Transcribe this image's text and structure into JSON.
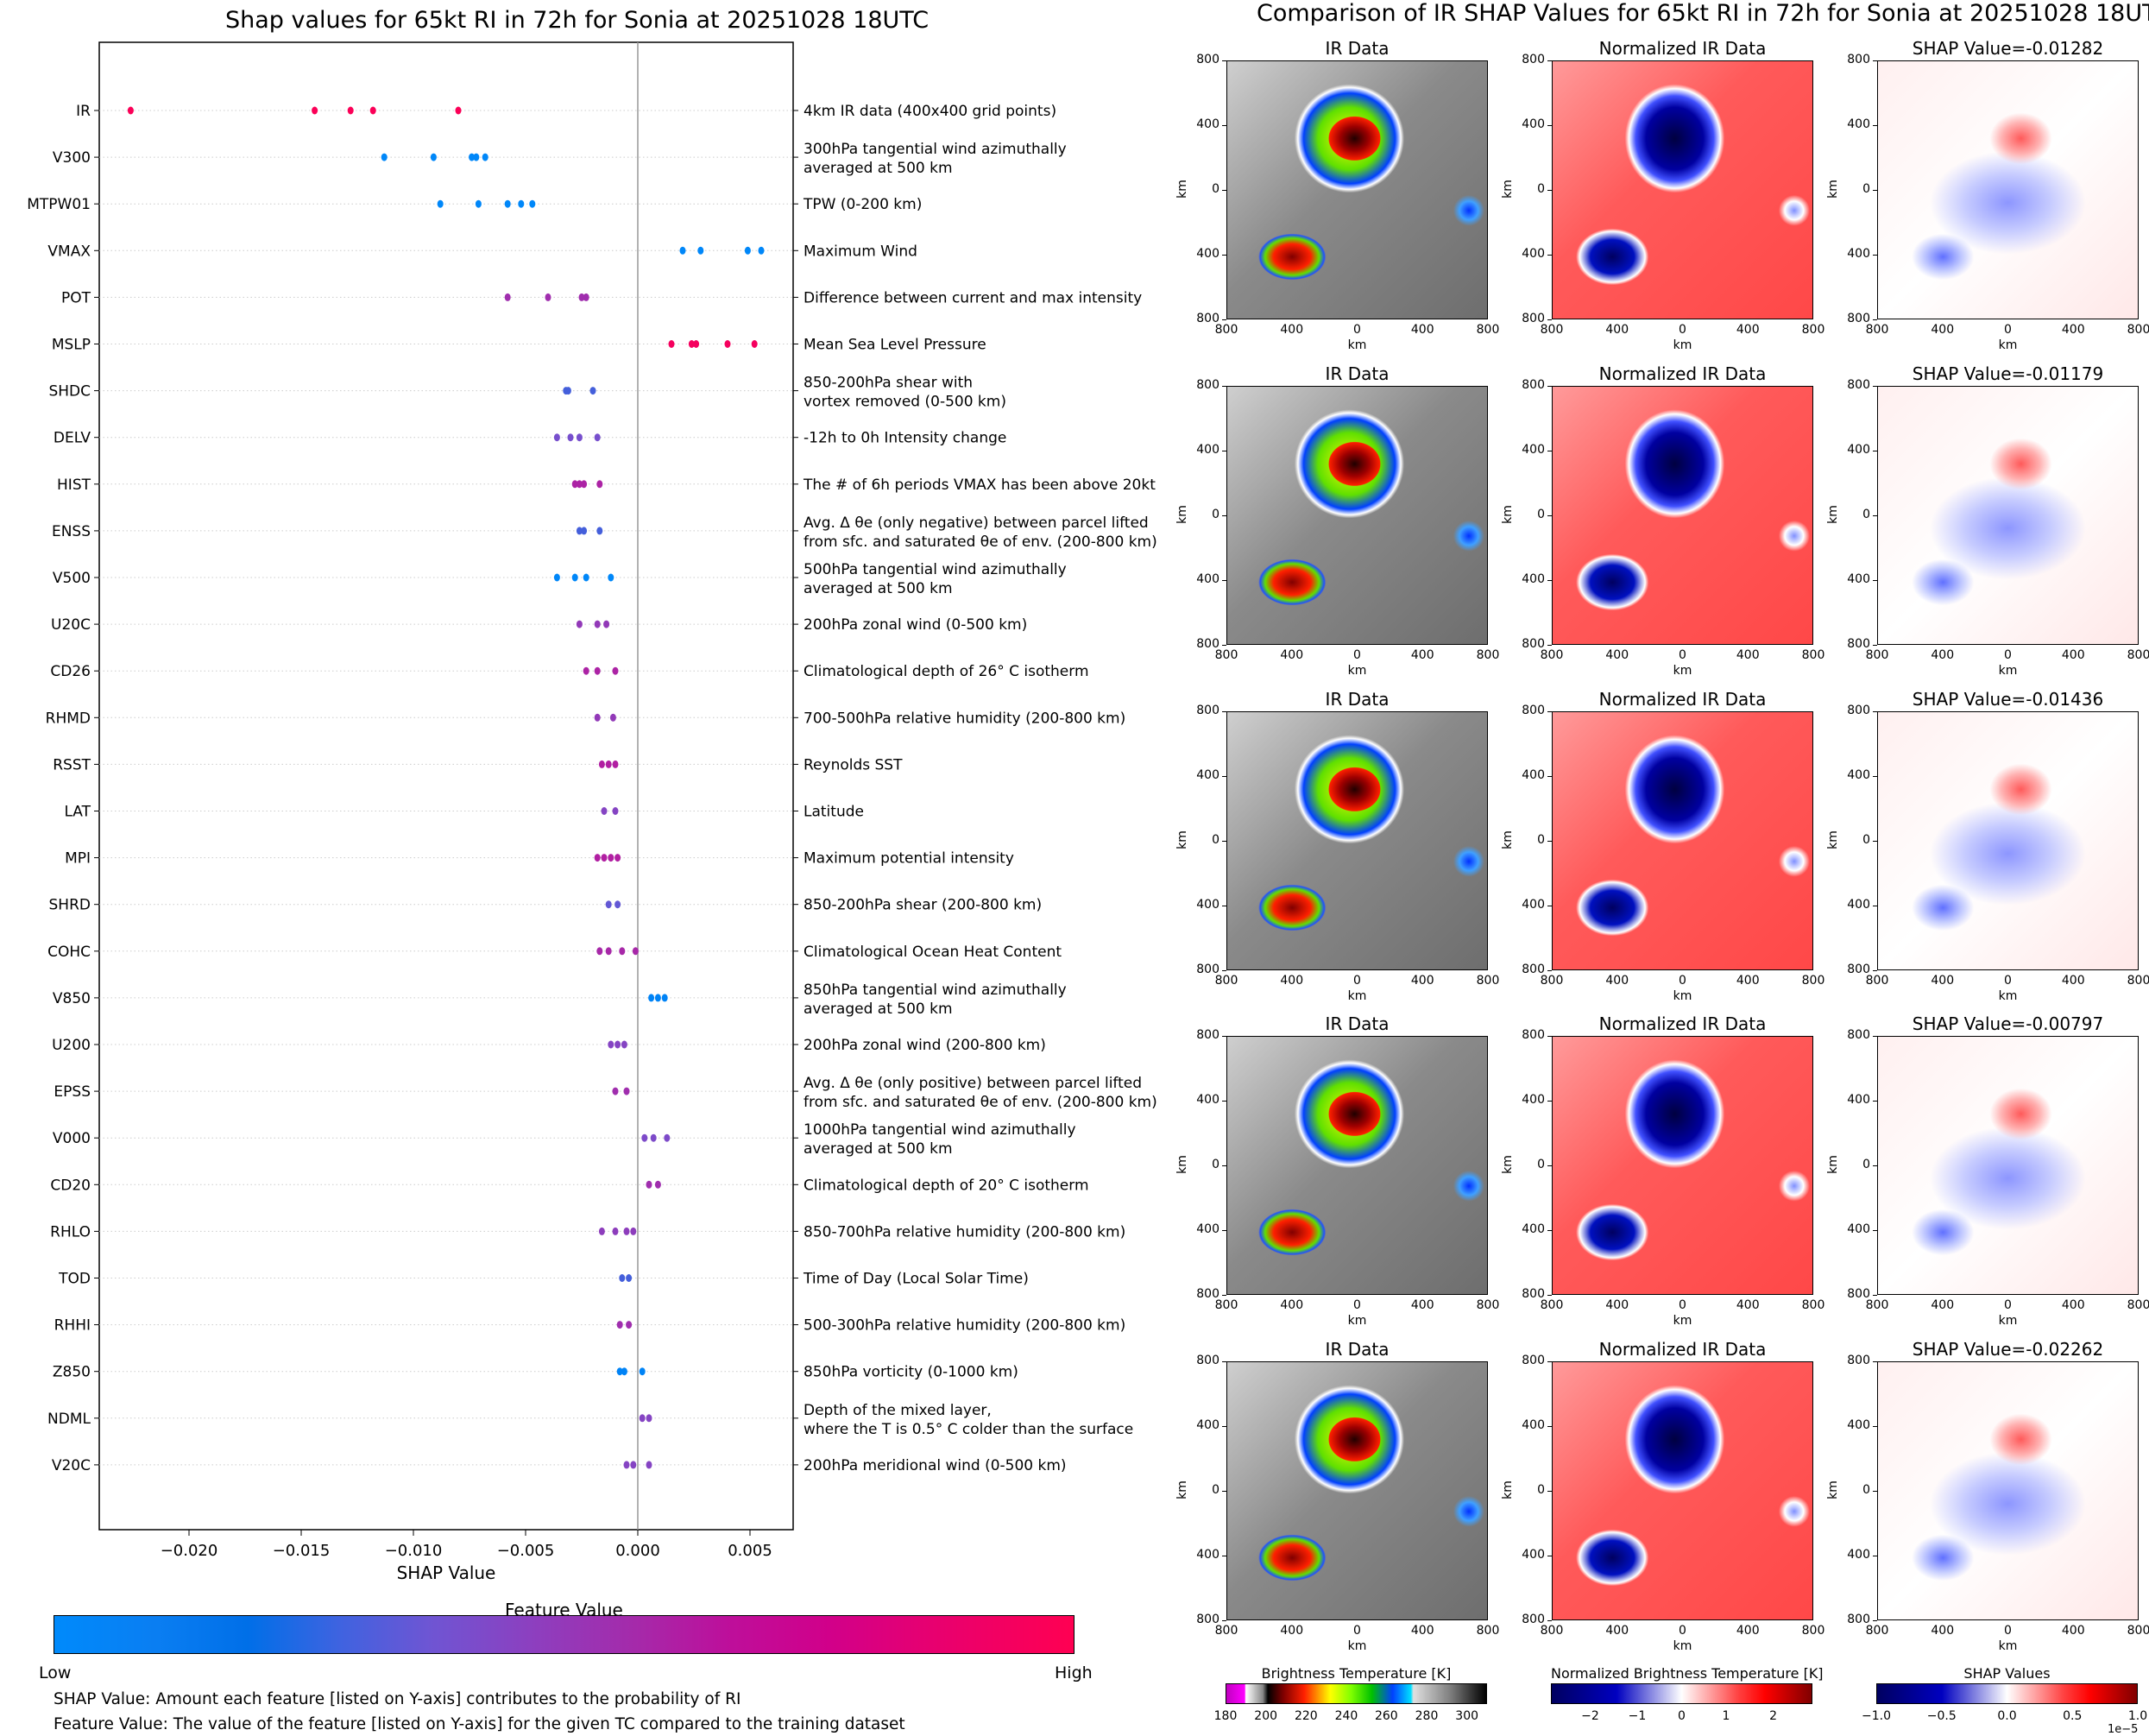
{
  "left": {
    "title": "Shap values for 65kt RI in 72h for Sonia at 20251028 18UTC",
    "colorbar_title": "Feature Value",
    "colorbar_low": "Low",
    "colorbar_high": "High",
    "note_shap": "SHAP Value: Amount each feature [listed on Y-axis] contributes to the probability of RI",
    "note_feature": "Feature Value: The value of the feature [listed on Y-axis] for the given TC compared to the training dataset"
  },
  "right": {
    "title": "Comparison of IR SHAP Values for 65kt RI in 72h for Sonia at 20251028 18UTC",
    "col_titles": [
      "IR Data",
      "Normalized IR Data"
    ],
    "shap_titles": [
      "SHAP Value=-0.01282",
      "SHAP Value=-0.01179",
      "SHAP Value=-0.01436",
      "SHAP Value=-0.00797",
      "SHAP Value=-0.02262"
    ],
    "axis_label": "km",
    "ticks": [
      "800",
      "400",
      "0",
      "400",
      "800"
    ],
    "cbar_bt": {
      "title": "Brightness Temperature [K]",
      "ticks": [
        "180",
        "200",
        "220",
        "240",
        "260",
        "280",
        "300"
      ]
    },
    "cbar_norm": {
      "title": "Normalized Brightness Temperature [K]",
      "ticks": [
        "−2",
        "−1",
        "0",
        "1",
        "2"
      ]
    },
    "cbar_shap": {
      "title": "SHAP Values",
      "ticks": [
        "−1.0",
        "−0.5",
        "0.0",
        "0.5",
        "1.0"
      ],
      "offset": "1e−5"
    }
  },
  "chart_data": [
    {
      "type": "scatter",
      "title": "Shap values for 65kt RI in 72h for Sonia at 20251028 18UTC",
      "xlabel": "SHAP Value",
      "ylabel": "",
      "xlim": [
        -0.024,
        0.007
      ],
      "xticks": [
        "−0.020",
        "−0.015",
        "−0.010",
        "−0.005",
        "0.000",
        "0.005"
      ],
      "xtick_values": [
        -0.02,
        -0.015,
        -0.01,
        -0.005,
        0.0,
        0.005
      ],
      "grid": "horizontal dotted",
      "colormap": "Feature Value (Low=blue #008afb, High=red #ff0052)",
      "features": [
        {
          "name": "IR",
          "desc": "4km IR data (400x400 grid points)",
          "values": [
            -0.0226,
            -0.0144,
            -0.0128,
            -0.0118,
            -0.008
          ],
          "fv": 0.98
        },
        {
          "name": "V300",
          "desc": "300hPa tangential wind azimuthally\naveraged at 500 km",
          "values": [
            -0.0113,
            -0.0091,
            -0.0074,
            -0.0072,
            -0.0068
          ],
          "fv": 0.02
        },
        {
          "name": "MTPW01",
          "desc": "TPW (0-200 km)",
          "values": [
            -0.0088,
            -0.0071,
            -0.0058,
            -0.0052,
            -0.0047
          ],
          "fv": 0.02
        },
        {
          "name": "VMAX",
          "desc": "Maximum Wind",
          "values": [
            0.002,
            0.0028,
            0.0049,
            0.0055
          ],
          "fv": 0.02
        },
        {
          "name": "POT",
          "desc": "Difference between current and max intensity",
          "values": [
            -0.0058,
            -0.004,
            -0.0025,
            -0.0023
          ],
          "fv": 0.55
        },
        {
          "name": "MSLP",
          "desc": "Mean Sea Level Pressure",
          "values": [
            0.0015,
            0.0024,
            0.0026,
            0.004,
            0.0052
          ],
          "fv": 0.95
        },
        {
          "name": "SHDC",
          "desc": "850-200hPa shear with\nvortex removed (0-500 km)",
          "values": [
            -0.0032,
            -0.0031,
            -0.002
          ],
          "fv": 0.3
        },
        {
          "name": "DELV",
          "desc": "-12h to 0h Intensity change",
          "values": [
            -0.0036,
            -0.003,
            -0.0026,
            -0.0018
          ],
          "fv": 0.4
        },
        {
          "name": "HIST",
          "desc": "The # of 6h periods VMAX has been above 20kt",
          "values": [
            -0.0028,
            -0.0026,
            -0.0024,
            -0.0017
          ],
          "fv": 0.6
        },
        {
          "name": "ENSS",
          "desc": "Avg. Δ θe (only negative) between parcel lifted\nfrom sfc. and saturated θe of env. (200-800 km)",
          "values": [
            -0.0026,
            -0.0024,
            -0.0017
          ],
          "fv": 0.3
        },
        {
          "name": "V500",
          "desc": "500hPa tangential wind azimuthally\naveraged at 500 km",
          "values": [
            -0.0036,
            -0.0028,
            -0.0023,
            -0.0012
          ],
          "fv": 0.02
        },
        {
          "name": "U20C",
          "desc": "200hPa zonal wind (0-500 km)",
          "values": [
            -0.0026,
            -0.0018,
            -0.0014
          ],
          "fv": 0.5
        },
        {
          "name": "CD26",
          "desc": "Climatological depth of 26° C isotherm",
          "values": [
            -0.0023,
            -0.0018,
            -0.001
          ],
          "fv": 0.6
        },
        {
          "name": "RHMD",
          "desc": "700-500hPa relative humidity (200-800 km)",
          "values": [
            -0.0018,
            -0.0011
          ],
          "fv": 0.5
        },
        {
          "name": "RSST",
          "desc": "Reynolds SST",
          "values": [
            -0.0016,
            -0.0013,
            -0.001
          ],
          "fv": 0.62
        },
        {
          "name": "LAT",
          "desc": "Latitude",
          "values": [
            -0.0015,
            -0.001
          ],
          "fv": 0.45
        },
        {
          "name": "MPI",
          "desc": "Maximum potential intensity",
          "values": [
            -0.0018,
            -0.0015,
            -0.0012,
            -0.0009
          ],
          "fv": 0.62
        },
        {
          "name": "SHRD",
          "desc": "850-200hPa shear (200-800 km)",
          "values": [
            -0.0013,
            -0.0009
          ],
          "fv": 0.35
        },
        {
          "name": "COHC",
          "desc": "Climatological Ocean Heat Content",
          "values": [
            -0.0017,
            -0.0013,
            -0.0007,
            -0.0001
          ],
          "fv": 0.58
        },
        {
          "name": "V850",
          "desc": "850hPa tangential wind azimuthally\naveraged at 500 km",
          "values": [
            0.0006,
            0.0009,
            0.0012
          ],
          "fv": 0.05
        },
        {
          "name": "U200",
          "desc": "200hPa zonal wind (200-800 km)",
          "values": [
            -0.0012,
            -0.0009,
            -0.0006
          ],
          "fv": 0.45
        },
        {
          "name": "EPSS",
          "desc": "Avg. Δ θe (only positive) between parcel lifted\nfrom sfc. and saturated θe of env. (200-800 km)",
          "values": [
            -0.001,
            -0.0005
          ],
          "fv": 0.55
        },
        {
          "name": "V000",
          "desc": "1000hPa tangential wind azimuthally\naveraged at 500 km",
          "values": [
            0.0003,
            0.0007,
            0.0013
          ],
          "fv": 0.42
        },
        {
          "name": "CD20",
          "desc": "Climatological depth of 20° C isotherm",
          "values": [
            0.0005,
            0.0009
          ],
          "fv": 0.55
        },
        {
          "name": "RHLO",
          "desc": "850-700hPa relative humidity (200-800 km)",
          "values": [
            -0.0016,
            -0.001,
            -0.0005,
            -0.0002
          ],
          "fv": 0.48
        },
        {
          "name": "TOD",
          "desc": "Time of Day (Local Solar Time)",
          "values": [
            -0.0007,
            -0.0004
          ],
          "fv": 0.3
        },
        {
          "name": "RHHI",
          "desc": "500-300hPa relative humidity (200-800 km)",
          "values": [
            -0.0008,
            -0.0004
          ],
          "fv": 0.55
        },
        {
          "name": "Z850",
          "desc": "850hPa vorticity (0-1000 km)",
          "values": [
            -0.0008,
            -0.0006,
            0.0002
          ],
          "fv": 0.05
        },
        {
          "name": "NDML",
          "desc": "Depth of the mixed layer,\nwhere the T is 0.5° C colder than the surface",
          "values": [
            0.0002,
            0.0005
          ],
          "fv": 0.45
        },
        {
          "name": "V20C",
          "desc": "200hPa meridional wind (0-500 km)",
          "values": [
            -0.0005,
            -0.0002,
            0.0005
          ],
          "fv": 0.45
        }
      ]
    }
  ]
}
